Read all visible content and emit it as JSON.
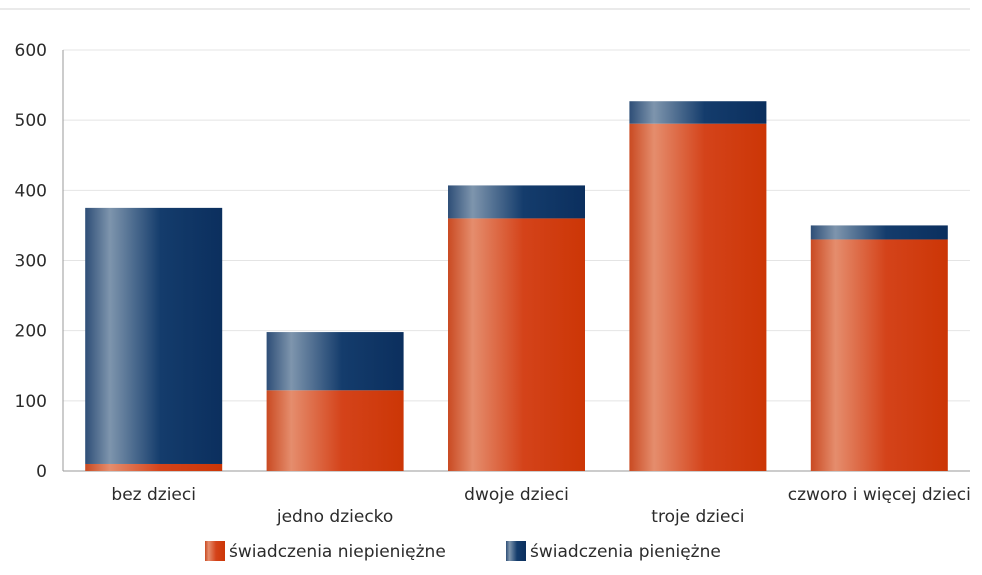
{
  "chart_data": {
    "type": "bar",
    "stacked": true,
    "categories": [
      "bez dzieci",
      "jedno dziecko",
      "dwoje dzieci",
      "troje dzieci",
      "czworo i więcej dzieci"
    ],
    "series": [
      {
        "name": "świadczenia niepieniężne",
        "values": [
          10,
          115,
          360,
          495,
          330
        ],
        "color": "#d13a10"
      },
      {
        "name": "świadczenia pieniężne",
        "values": [
          365,
          83,
          47,
          32,
          20
        ],
        "color": "#0e3466"
      }
    ],
    "ylim": [
      0,
      600
    ],
    "yticks": [
      0,
      100,
      200,
      300,
      400,
      500,
      600
    ],
    "grid": true,
    "legend": "bottom-center"
  }
}
